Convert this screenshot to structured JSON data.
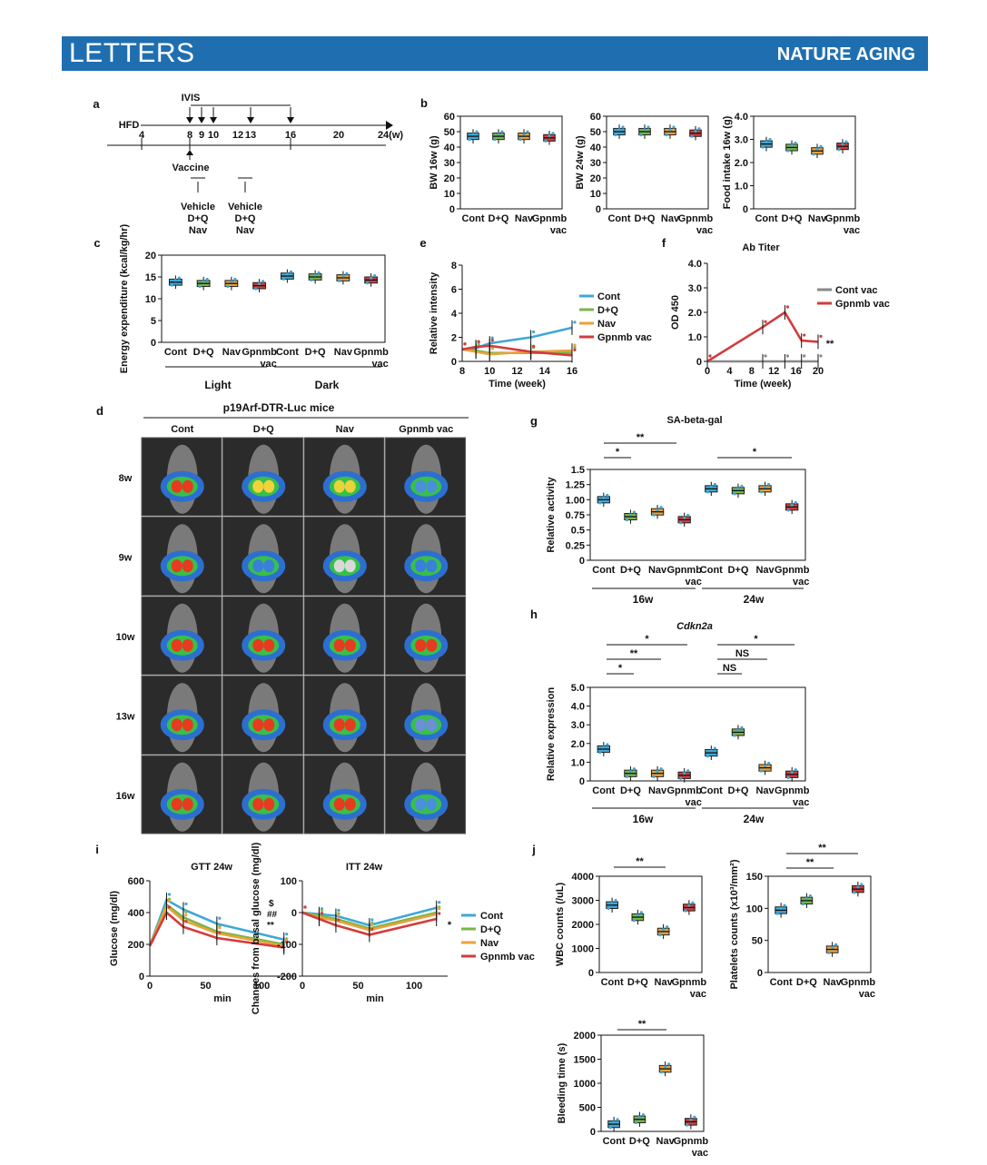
{
  "header": {
    "section": "LETTERS",
    "journal": "NATURE AGING"
  },
  "colors": {
    "Cont": "#3fa7d6",
    "D+Q": "#7ab648",
    "Nav": "#e9a23b",
    "Gpnmb vac": "#d23c3c",
    "banner": "#1f6fb0"
  },
  "panel_a": {
    "letter": "a",
    "hfd": "HFD",
    "ivis": "IVIS",
    "unit": "24(w)",
    "ticks": [
      "4",
      "8",
      "9",
      "10",
      "12",
      "13",
      "16",
      "20"
    ],
    "vaccine": "Vaccine",
    "treat_text": [
      "Vehicle",
      "D+Q",
      "Nav"
    ]
  },
  "panel_d": {
    "letter": "d",
    "title": "p19Arf-DTR-Luc mice",
    "cols": [
      "Cont",
      "D+Q",
      "Nav",
      "Gpnmb vac"
    ],
    "rows": [
      "8w",
      "9w",
      "10w",
      "13w",
      "16w"
    ]
  },
  "labels": {
    "cont": "Cont",
    "dq": "D+Q",
    "nav": "Nav",
    "gpnmb": "Gpnmb",
    "vac": "vac",
    "light": "Light",
    "dark": "Dark",
    "w16": "16w",
    "w24": "24w",
    "star": "*",
    "stars": "**",
    "ns": "NS",
    "dollar": "$",
    "hash": "##"
  },
  "chart_data": [
    {
      "panel": "b",
      "type": "box",
      "ylabel": "BW 16w (g)",
      "ylim": [
        0,
        60
      ],
      "yticks": [
        "0",
        "10",
        "20",
        "30",
        "40",
        "50",
        "60"
      ],
      "categories": [
        "Cont",
        "D+Q",
        "Nav",
        "Gpnmb vac"
      ],
      "medians": [
        47,
        47,
        47,
        46
      ]
    },
    {
      "panel": "b",
      "type": "box",
      "ylabel": "BW 24w (g)",
      "ylim": [
        0,
        60
      ],
      "yticks": [
        "0",
        "10",
        "20",
        "30",
        "40",
        "50",
        "60"
      ],
      "categories": [
        "Cont",
        "D+Q",
        "Nav",
        "Gpnmb vac"
      ],
      "medians": [
        50,
        50,
        50,
        49
      ]
    },
    {
      "panel": "b",
      "type": "box",
      "ylabel": "Food intake 16w (g)",
      "ylim": [
        0,
        4
      ],
      "yticks": [
        "0",
        "1.0",
        "2.0",
        "3.0",
        "4.0"
      ],
      "categories": [
        "Cont",
        "D+Q",
        "Nav",
        "Gpnmb vac"
      ],
      "medians": [
        2.8,
        2.65,
        2.5,
        2.7
      ]
    },
    {
      "panel": "c",
      "type": "box",
      "ylabel": "Energy expenditure (kcal/kg/hr)",
      "ylim": [
        0,
        20
      ],
      "yticks": [
        "0",
        "5",
        "10",
        "15",
        "20"
      ],
      "groups": [
        "Light",
        "Dark"
      ],
      "categories": [
        "Cont",
        "D+Q",
        "Nav",
        "Gpnmb vac"
      ],
      "medians": [
        13.8,
        13.5,
        13.5,
        13,
        15.2,
        15,
        14.8,
        14.3
      ]
    },
    {
      "panel": "e",
      "type": "line",
      "xlabel": "Time (week)",
      "ylabel": "Relative intensity",
      "ylim": [
        0,
        8
      ],
      "yticks": [
        "0",
        "2",
        "4",
        "6",
        "8"
      ],
      "x": [
        8,
        9,
        10,
        13,
        16
      ],
      "xticks": [
        "8",
        "10",
        "12",
        "14",
        "16"
      ],
      "series": [
        {
          "name": "Cont",
          "values": [
            1.0,
            1.1,
            1.5,
            2.0,
            2.8
          ]
        },
        {
          "name": "D+Q",
          "values": [
            1.0,
            0.9,
            0.7,
            0.7,
            0.7
          ]
        },
        {
          "name": "Nav",
          "values": [
            1.0,
            0.8,
            0.6,
            0.8,
            0.9
          ]
        },
        {
          "name": "Gpnmb vac",
          "values": [
            1.0,
            1.2,
            1.3,
            0.8,
            0.5
          ]
        }
      ]
    },
    {
      "panel": "f",
      "type": "line",
      "title": "Ab Titer",
      "xlabel": "Time (week)",
      "ylabel": "OD 450",
      "ylim": [
        0,
        4
      ],
      "yticks": [
        "0",
        "1.0",
        "2.0",
        "3.0",
        "4.0"
      ],
      "x": [
        0,
        10,
        14,
        17,
        20
      ],
      "xticks": [
        "0",
        "4",
        "8",
        "12",
        "16",
        "20"
      ],
      "series": [
        {
          "name": "Cont vac",
          "values": [
            0,
            0,
            0,
            0,
            0
          ]
        },
        {
          "name": "Gpnmb vac",
          "values": [
            0,
            1.4,
            2.0,
            0.85,
            0.8
          ]
        }
      ]
    },
    {
      "panel": "g",
      "type": "box",
      "title": "SA-beta-gal",
      "ylabel": "Relative activity",
      "ylim": [
        0,
        1.5
      ],
      "yticks": [
        "0",
        "0.25",
        "0.5",
        "0.75",
        "1.00",
        "1.25",
        "1.5"
      ],
      "groups": [
        "16w",
        "24w"
      ],
      "categories": [
        "Cont",
        "D+Q",
        "Nav",
        "Gpnmb vac"
      ],
      "medians": [
        1.0,
        0.72,
        0.8,
        0.67,
        1.18,
        1.15,
        1.18,
        0.88
      ]
    },
    {
      "panel": "h",
      "type": "box",
      "title": "Cdkn2a",
      "ylabel": "Relative expression",
      "ylim": [
        0,
        5
      ],
      "yticks": [
        "0",
        "1.0",
        "2.0",
        "3.0",
        "4.0",
        "5.0"
      ],
      "groups": [
        "16w",
        "24w"
      ],
      "categories": [
        "Cont",
        "D+Q",
        "Nav",
        "Gpnmb vac"
      ],
      "medians": [
        1.7,
        0.4,
        0.4,
        0.3,
        1.5,
        2.6,
        0.7,
        0.35
      ]
    },
    {
      "panel": "i",
      "type": "line",
      "title": "GTT 24w",
      "xlabel": "min",
      "ylabel": "Glucose (mg/dl)",
      "ylim": [
        0,
        600
      ],
      "yticks": [
        "0",
        "200",
        "400",
        "600"
      ],
      "x": [
        0,
        15,
        30,
        60,
        120
      ],
      "xticks": [
        "0",
        "50",
        "100"
      ],
      "series": [
        {
          "name": "Cont",
          "values": [
            190,
            480,
            420,
            330,
            230
          ]
        },
        {
          "name": "D+Q",
          "values": [
            190,
            450,
            370,
            280,
            200
          ]
        },
        {
          "name": "Nav",
          "values": [
            190,
            440,
            350,
            270,
            190
          ]
        },
        {
          "name": "Gpnmb vac",
          "values": [
            190,
            400,
            310,
            240,
            180
          ]
        }
      ]
    },
    {
      "panel": "i",
      "type": "line",
      "title": "ITT 24w",
      "xlabel": "min",
      "ylabel": "Changes from basal glucose (mg/dl)",
      "ylim": [
        -200,
        100
      ],
      "yticks": [
        "-200",
        "-100",
        "0",
        "100"
      ],
      "x": [
        0,
        15,
        30,
        60,
        120
      ],
      "xticks": [
        "0",
        "50",
        "100"
      ],
      "series": [
        {
          "name": "Cont",
          "values": [
            0,
            -5,
            -10,
            -40,
            15
          ]
        },
        {
          "name": "D+Q",
          "values": [
            0,
            -10,
            -20,
            -50,
            0
          ]
        },
        {
          "name": "Nav",
          "values": [
            0,
            -15,
            -25,
            -55,
            -5
          ]
        },
        {
          "name": "Gpnmb vac",
          "values": [
            0,
            -20,
            -40,
            -70,
            -20
          ]
        }
      ]
    },
    {
      "panel": "j",
      "type": "box",
      "ylabel": "WBC counts (/uL)",
      "ylim": [
        0,
        4000
      ],
      "yticks": [
        "0",
        "1000",
        "2000",
        "3000",
        "4000"
      ],
      "categories": [
        "Cont",
        "D+Q",
        "Nav",
        "Gpnmb vac"
      ],
      "medians": [
        2800,
        2300,
        1700,
        2700
      ]
    },
    {
      "panel": "j",
      "type": "box",
      "ylabel": "Platelets counts (x10³/mm²)",
      "ylim": [
        0,
        150
      ],
      "yticks": [
        "0",
        "50",
        "100",
        "150"
      ],
      "categories": [
        "Cont",
        "D+Q",
        "Nav",
        "Gpnmb vac"
      ],
      "medians": [
        97,
        112,
        36,
        130
      ]
    },
    {
      "panel": "j",
      "type": "box",
      "ylabel": "Bleeding time (s)",
      "ylim": [
        0,
        2000
      ],
      "yticks": [
        "0",
        "500",
        "1000",
        "1500",
        "2000"
      ],
      "categories": [
        "Cont",
        "D+Q",
        "Nav",
        "Gpnmb vac"
      ],
      "medians": [
        150,
        250,
        1300,
        200
      ]
    }
  ]
}
